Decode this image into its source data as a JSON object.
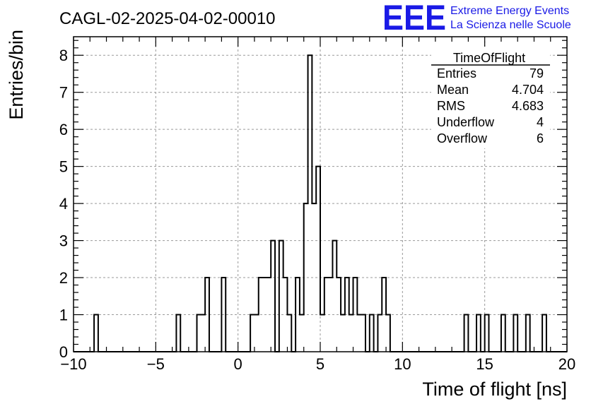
{
  "chart_data": {
    "type": "bar",
    "title": "CAGL-02-2025-04-02-00010",
    "xlabel": "Time of flight [ns]",
    "ylabel": "Entries/bin",
    "xlim": [
      -10,
      20
    ],
    "ylim": [
      0,
      8.5
    ],
    "x_ticks": [
      -10,
      -5,
      0,
      5,
      10,
      15,
      20
    ],
    "y_ticks": [
      0,
      1,
      2,
      3,
      4,
      5,
      6,
      7,
      8
    ],
    "grid": true,
    "bin_width": 0.25,
    "bins": [
      {
        "x": -8.75,
        "y": 1
      },
      {
        "x": -3.75,
        "y": 1
      },
      {
        "x": -2.5,
        "y": 1
      },
      {
        "x": -2.25,
        "y": 1
      },
      {
        "x": -2.0,
        "y": 2
      },
      {
        "x": -1.0,
        "y": 2
      },
      {
        "x": 0.75,
        "y": 1
      },
      {
        "x": 1.0,
        "y": 1
      },
      {
        "x": 1.25,
        "y": 2
      },
      {
        "x": 1.5,
        "y": 2
      },
      {
        "x": 1.75,
        "y": 2
      },
      {
        "x": 2.0,
        "y": 3
      },
      {
        "x": 2.5,
        "y": 3
      },
      {
        "x": 2.75,
        "y": 2
      },
      {
        "x": 3.0,
        "y": 1
      },
      {
        "x": 3.5,
        "y": 2
      },
      {
        "x": 3.75,
        "y": 1
      },
      {
        "x": 4.0,
        "y": 4
      },
      {
        "x": 4.25,
        "y": 8
      },
      {
        "x": 4.5,
        "y": 4
      },
      {
        "x": 4.75,
        "y": 5
      },
      {
        "x": 5.0,
        "y": 1
      },
      {
        "x": 5.25,
        "y": 2
      },
      {
        "x": 5.5,
        "y": 2
      },
      {
        "x": 5.75,
        "y": 3
      },
      {
        "x": 6.0,
        "y": 2
      },
      {
        "x": 6.25,
        "y": 1
      },
      {
        "x": 6.5,
        "y": 2
      },
      {
        "x": 6.75,
        "y": 1
      },
      {
        "x": 7.0,
        "y": 2
      },
      {
        "x": 7.25,
        "y": 1
      },
      {
        "x": 7.5,
        "y": 1
      },
      {
        "x": 8.0,
        "y": 1
      },
      {
        "x": 8.5,
        "y": 1
      },
      {
        "x": 8.75,
        "y": 2
      },
      {
        "x": 9.0,
        "y": 1
      },
      {
        "x": 13.75,
        "y": 1
      },
      {
        "x": 14.5,
        "y": 1
      },
      {
        "x": 15.0,
        "y": 1
      },
      {
        "x": 16.0,
        "y": 1
      },
      {
        "x": 16.75,
        "y": 1
      },
      {
        "x": 17.5,
        "y": 1
      },
      {
        "x": 18.5,
        "y": 1
      }
    ],
    "stats": {
      "title": "TimeOfFlight",
      "rows": [
        {
          "label": "Entries",
          "value": "79"
        },
        {
          "label": "Mean",
          "value": "4.704"
        },
        {
          "label": "RMS",
          "value": "4.683"
        },
        {
          "label": "Underflow",
          "value": "4"
        },
        {
          "label": "Overflow",
          "value": "6"
        }
      ]
    }
  },
  "logo": {
    "mark": "EEE",
    "line1": "Extreme Energy Events",
    "line2": "La Scienza nelle Scuole",
    "color": "#1a1ae6"
  }
}
